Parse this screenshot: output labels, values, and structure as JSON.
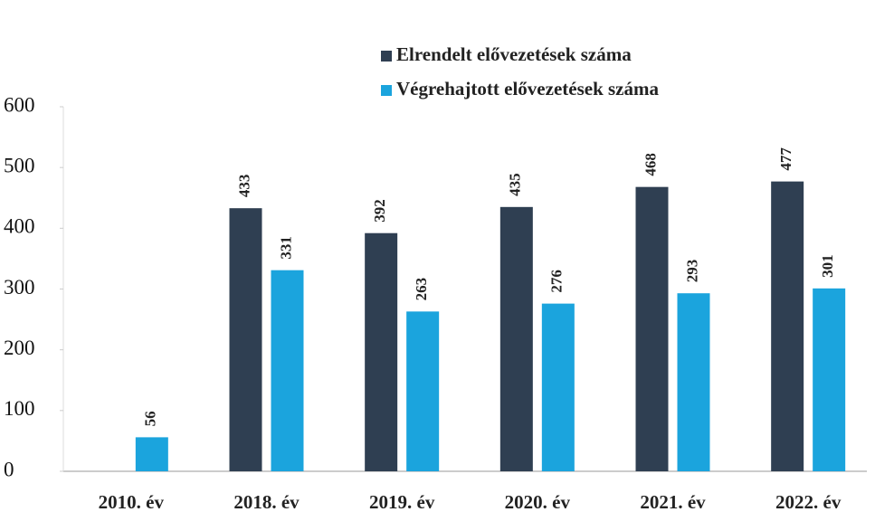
{
  "chart_data": {
    "type": "bar",
    "categories": [
      "2010. év",
      "2018. év",
      "2019. év",
      "2020. év",
      "2021. év",
      "2022. év"
    ],
    "series": [
      {
        "name": "Elrendelt elővezetések száma",
        "color": "#2f3f52",
        "values": [
          null,
          433,
          392,
          435,
          468,
          477
        ]
      },
      {
        "name": "Végrehajtott elővezetések száma",
        "color": "#1ba4dd",
        "values": [
          56,
          331,
          263,
          276,
          293,
          301
        ]
      }
    ],
    "ylim": [
      0,
      600
    ],
    "yticks": [
      0,
      100,
      200,
      300,
      400,
      500,
      600
    ],
    "grid": false
  }
}
